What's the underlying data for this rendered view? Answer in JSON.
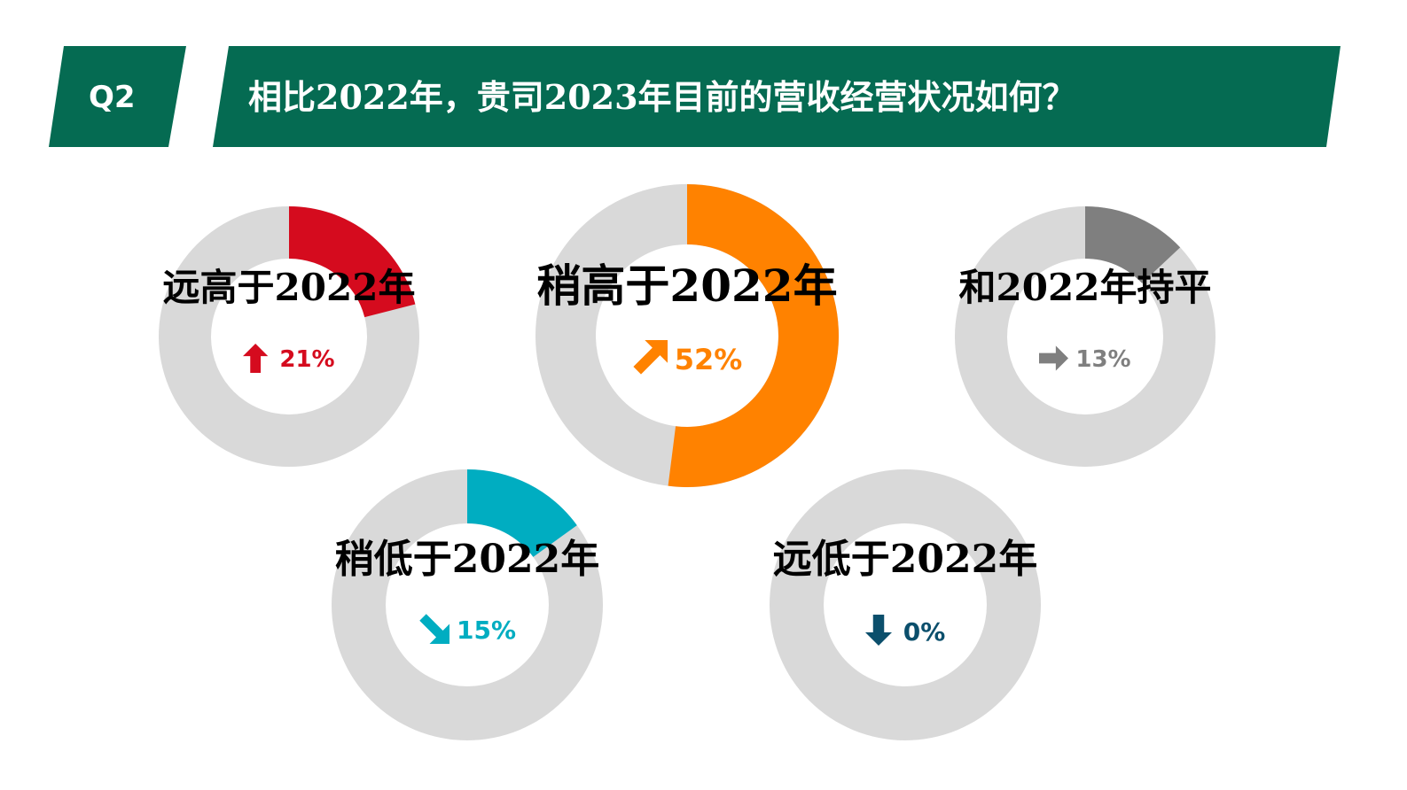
{
  "header": {
    "q_label": "Q2",
    "question": "相比2022年，贵司2023年目前的营收经营状况如何？",
    "banner_color": "#056b52"
  },
  "colors": {
    "track": "#d9d9d9"
  },
  "chart_data": {
    "type": "pie",
    "variant": "donut",
    "categories": [
      "远高于2022年",
      "稍高于2022年",
      "和2022年持平",
      "稍低于2022年",
      "远低于2022年"
    ],
    "values": [
      21,
      52,
      13,
      15,
      0
    ],
    "value_labels": [
      "21%",
      "52%",
      "13%",
      "15%",
      "0%"
    ],
    "colors": [
      "#d50b1e",
      "#ff8200",
      "#7f7f7f",
      "#00adc1",
      "#0b4f6c"
    ],
    "icons": [
      "arrow-up-icon",
      "arrow-up-right-icon",
      "arrow-right-icon",
      "arrow-down-right-icon",
      "arrow-down-icon"
    ]
  }
}
